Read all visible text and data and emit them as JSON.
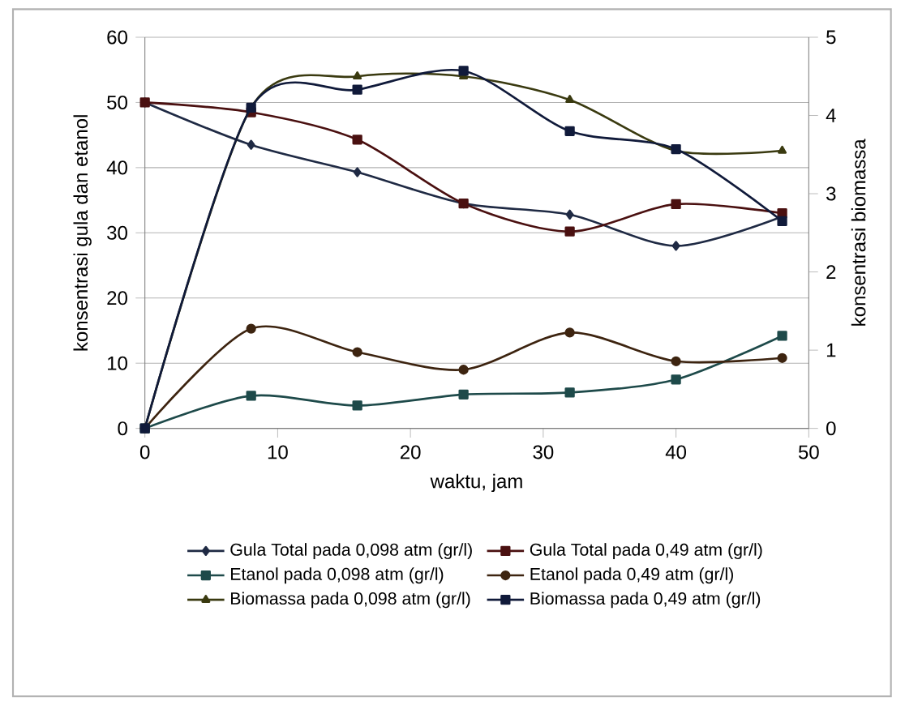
{
  "chart_data": {
    "type": "line",
    "xlabel": "waktu, jam",
    "ylabel": "konsentrasi gula dan etanol",
    "y2label": "konsentrasi biomassa",
    "x": [
      0,
      8,
      16,
      24,
      32,
      40,
      48
    ],
    "series": [
      {
        "name": "Gula Total pada 0,098 atm (gr/l)",
        "color": "#1f2a44",
        "marker": "diamond",
        "values": [
          50,
          43.5,
          39.3,
          34.5,
          32.8,
          28,
          32.5
        ]
      },
      {
        "name": "Gula Total pada 0,49 atm (gr/l)",
        "color": "#4a1010",
        "marker": "square",
        "values": [
          50,
          48.5,
          44.3,
          34.5,
          30.2,
          34.4,
          33
        ]
      },
      {
        "name": "Etanol pada 0,098 atm (gr/l)",
        "color": "#1e4a4a",
        "marker": "square",
        "values": [
          0,
          5,
          3.5,
          5.2,
          5.5,
          7.5,
          14.2
        ]
      },
      {
        "name": "Etanol pada 0,49 atm (gr/l)",
        "color": "#3d2410",
        "marker": "circle",
        "values": [
          0,
          15.3,
          11.7,
          9,
          14.7,
          10.3,
          10.8
        ]
      },
      {
        "name": "Biomassa pada 0,098 atm (gr/l)",
        "color": "#3a3a10",
        "marker": "triangle",
        "axis": "y2",
        "values": [
          0,
          4.1,
          4.5,
          4.5,
          4.2,
          3.55,
          3.55
        ]
      },
      {
        "name": "Biomassa  pada 0,49 atm (gr/l)",
        "color": "#101a3a",
        "marker": "square",
        "axis": "y2",
        "values": [
          0,
          4.1,
          4.33,
          4.57,
          3.8,
          3.57,
          2.65
        ]
      }
    ],
    "xlim": [
      0,
      50
    ],
    "xticks": [
      0,
      10,
      20,
      30,
      40,
      50
    ],
    "ylim": [
      0,
      60
    ],
    "yticks": [
      0,
      10,
      20,
      30,
      40,
      50,
      60
    ],
    "y2lim": [
      0,
      5
    ],
    "y2ticks": [
      0,
      1,
      2,
      3,
      4,
      5
    ],
    "grid": "y",
    "legend": "bottom",
    "line_style": "solid"
  }
}
